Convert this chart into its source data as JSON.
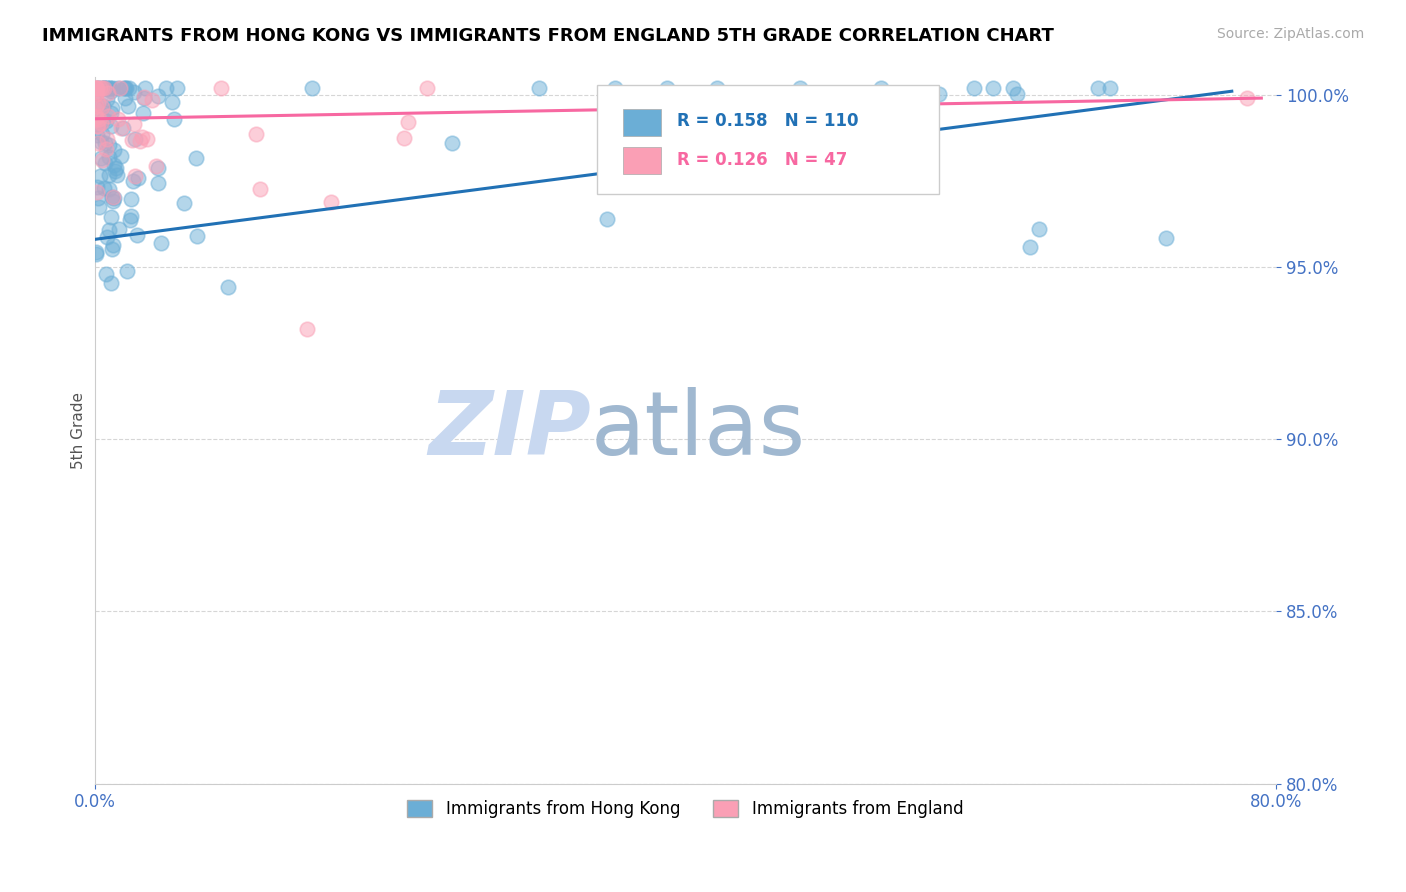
{
  "title": "IMMIGRANTS FROM HONG KONG VS IMMIGRANTS FROM ENGLAND 5TH GRADE CORRELATION CHART",
  "source": "Source: ZipAtlas.com",
  "ylabel": "5th Grade",
  "legend_label1": "Immigrants from Hong Kong",
  "legend_label2": "Immigrants from England",
  "R1": 0.158,
  "N1": 110,
  "R2": 0.126,
  "N2": 47,
  "xmin": 0.0,
  "xmax": 0.8,
  "ymin": 0.8,
  "ymax": 1.005,
  "yticks": [
    1.0,
    0.95,
    0.9,
    0.85,
    0.8
  ],
  "ytick_labels": [
    "100.0%",
    "95.0%",
    "90.0%",
    "85.0%",
    "80.0%"
  ],
  "xtick_labels": [
    "0.0%",
    "80.0%"
  ],
  "color_hk": "#6baed6",
  "color_eng": "#fa9fb5",
  "color_line_hk": "#2171b5",
  "color_line_eng": "#f768a1",
  "watermark_zip": "ZIP",
  "watermark_atlas": "atlas",
  "watermark_color_zip": "#c8d8f0",
  "watermark_color_atlas": "#a0b8d0",
  "title_fontsize": 13,
  "tick_label_color": "#4472c4",
  "hk_trend_x": [
    0.0,
    0.77
  ],
  "hk_trend_y": [
    0.958,
    1.001
  ],
  "eng_trend_x": [
    0.0,
    0.79
  ],
  "eng_trend_y": [
    0.993,
    0.999
  ]
}
